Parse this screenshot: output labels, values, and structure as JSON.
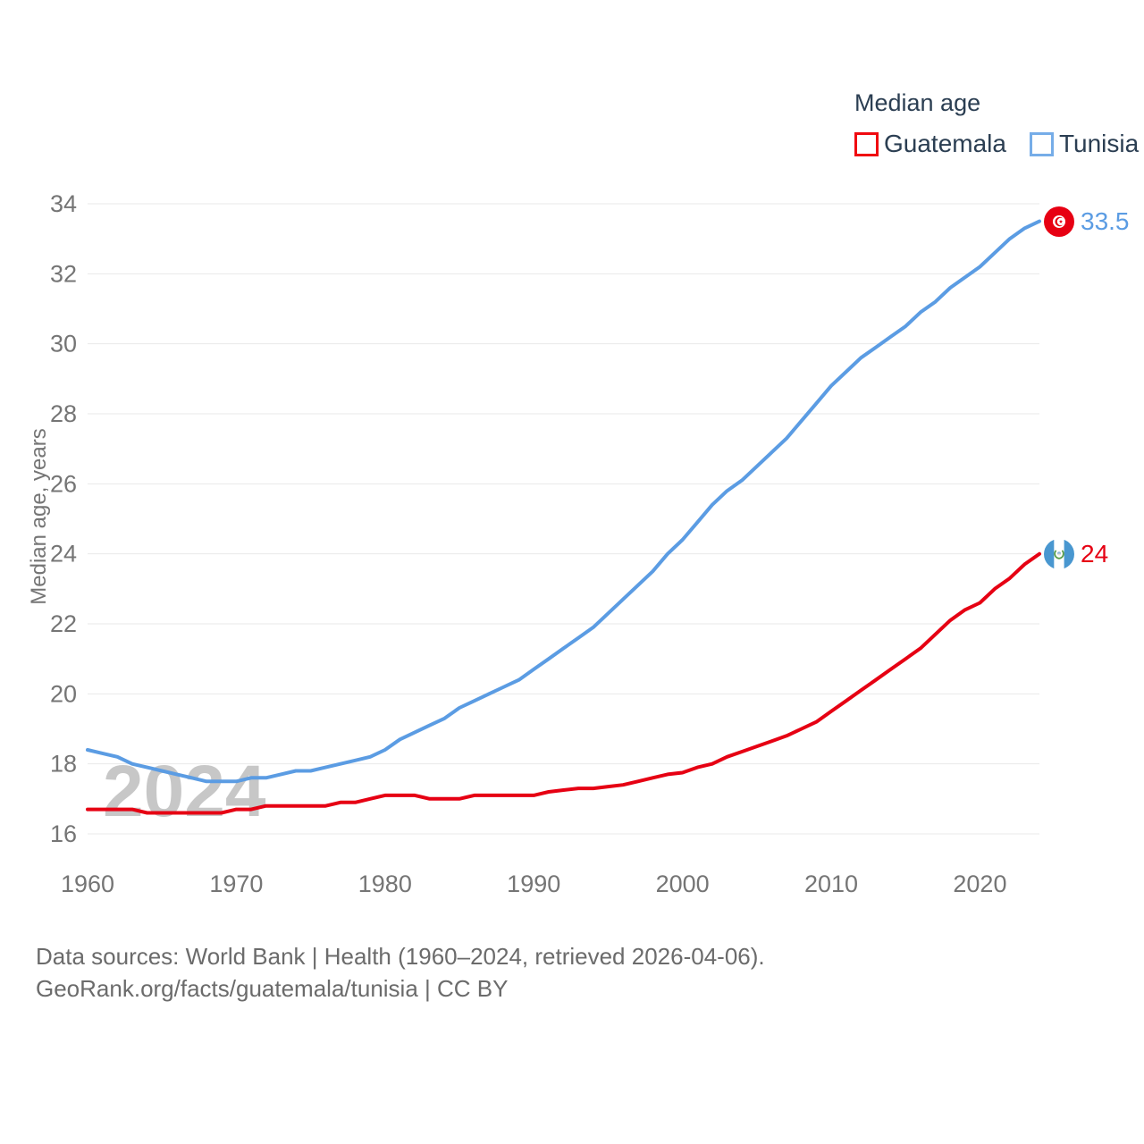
{
  "legend": {
    "title": "Median age",
    "items": [
      {
        "label": "Guatemala",
        "color": "#e60013"
      },
      {
        "label": "Tunisia",
        "color": "#76ade8"
      }
    ]
  },
  "y_axis_title": "Median age, years",
  "watermark": "2024",
  "end_markers": [
    {
      "series": "Tunisia",
      "flag": "tunisia-flag-icon",
      "value": "33.5",
      "color": "#5b9ce3"
    },
    {
      "series": "Guatemala",
      "flag": "guatemala-flag-icon",
      "value": "24",
      "color": "#e60013"
    }
  ],
  "footer": {
    "line1": "Data sources: World Bank | Health (1960–2024, retrieved 2026-04-06).",
    "line2": "GeoRank.org/facts/guatemala/tunisia | CC BY"
  },
  "colors": {
    "guatemala_line": "#e60013",
    "tunisia_line": "#5b9ce3",
    "gridline": "#e9e9e9",
    "tick_label": "#757575",
    "legend_text": "#2b3e52",
    "watermark": "#c7c7c7",
    "footer_text": "#6b6b6b"
  },
  "chart_data": {
    "type": "line",
    "title": "Median age",
    "xlabel": "",
    "ylabel": "Median age, years",
    "xlim": [
      1960,
      2024
    ],
    "ylim": [
      16,
      34
    ],
    "xticks": [
      1960,
      1970,
      1980,
      1990,
      2000,
      2010,
      2020
    ],
    "yticks": [
      16,
      18,
      20,
      22,
      24,
      26,
      28,
      30,
      32,
      34
    ],
    "grid": "horizontal",
    "legend_position": "top-right",
    "x": [
      1960,
      1961,
      1962,
      1963,
      1964,
      1965,
      1966,
      1967,
      1968,
      1969,
      1970,
      1971,
      1972,
      1973,
      1974,
      1975,
      1976,
      1977,
      1978,
      1979,
      1980,
      1981,
      1982,
      1983,
      1984,
      1985,
      1986,
      1987,
      1988,
      1989,
      1990,
      1991,
      1992,
      1993,
      1994,
      1995,
      1996,
      1997,
      1998,
      1999,
      2000,
      2001,
      2002,
      2003,
      2004,
      2005,
      2006,
      2007,
      2008,
      2009,
      2010,
      2011,
      2012,
      2013,
      2014,
      2015,
      2016,
      2017,
      2018,
      2019,
      2020,
      2021,
      2022,
      2023,
      2024
    ],
    "series": [
      {
        "name": "Guatemala",
        "color": "#e60013",
        "end_value": 24,
        "values": [
          16.7,
          16.7,
          16.7,
          16.7,
          16.6,
          16.6,
          16.6,
          16.6,
          16.6,
          16.6,
          16.7,
          16.7,
          16.8,
          16.8,
          16.8,
          16.8,
          16.8,
          16.9,
          16.9,
          17.0,
          17.1,
          17.1,
          17.1,
          17.0,
          17.0,
          17.0,
          17.1,
          17.1,
          17.1,
          17.1,
          17.1,
          17.2,
          17.25,
          17.3,
          17.3,
          17.35,
          17.4,
          17.5,
          17.6,
          17.7,
          17.75,
          17.9,
          18.0,
          18.2,
          18.35,
          18.5,
          18.65,
          18.8,
          19.0,
          19.2,
          19.5,
          19.8,
          20.1,
          20.4,
          20.7,
          21.0,
          21.3,
          21.7,
          22.1,
          22.4,
          22.6,
          23.0,
          23.3,
          23.7,
          24.0
        ]
      },
      {
        "name": "Tunisia",
        "color": "#5b9ce3",
        "end_value": 33.5,
        "values": [
          18.4,
          18.3,
          18.2,
          18.0,
          17.9,
          17.8,
          17.7,
          17.6,
          17.5,
          17.5,
          17.5,
          17.6,
          17.6,
          17.7,
          17.8,
          17.8,
          17.9,
          18.0,
          18.1,
          18.2,
          18.4,
          18.7,
          18.9,
          19.1,
          19.3,
          19.6,
          19.8,
          20.0,
          20.2,
          20.4,
          20.7,
          21.0,
          21.3,
          21.6,
          21.9,
          22.3,
          22.7,
          23.1,
          23.5,
          24.0,
          24.4,
          24.9,
          25.4,
          25.8,
          26.1,
          26.5,
          26.9,
          27.3,
          27.8,
          28.3,
          28.8,
          29.2,
          29.6,
          29.9,
          30.2,
          30.5,
          30.9,
          31.2,
          31.6,
          31.9,
          32.2,
          32.6,
          33.0,
          33.3,
          33.5
        ]
      }
    ]
  }
}
